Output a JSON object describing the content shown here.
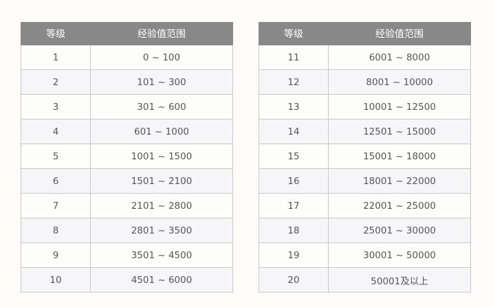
{
  "headers": {
    "level": "等级",
    "range": "经验值范围"
  },
  "left_table": [
    {
      "level": "1",
      "range": "0 ~ 100"
    },
    {
      "level": "2",
      "range": "101 ~ 300"
    },
    {
      "level": "3",
      "range": "301 ~ 600"
    },
    {
      "level": "4",
      "range": "601 ~ 1000"
    },
    {
      "level": "5",
      "range": "1001 ~ 1500"
    },
    {
      "level": "6",
      "range": "1501 ~ 2100"
    },
    {
      "level": "7",
      "range": "2101 ~ 2800"
    },
    {
      "level": "8",
      "range": "2801 ~ 3500"
    },
    {
      "level": "9",
      "range": "3501 ~ 4500"
    },
    {
      "level": "10",
      "range": "4501 ~ 6000"
    }
  ],
  "right_table": [
    {
      "level": "11",
      "range": "6001 ~ 8000"
    },
    {
      "level": "12",
      "range": "8001 ~ 10000"
    },
    {
      "level": "13",
      "range": "10001 ~ 12500"
    },
    {
      "level": "14",
      "range": "12501 ~ 15000"
    },
    {
      "level": "15",
      "range": "15001 ~ 18000"
    },
    {
      "level": "16",
      "range": "18001 ~ 22000"
    },
    {
      "level": "17",
      "range": "22001 ~ 25000"
    },
    {
      "level": "18",
      "range": "25001 ~ 30000"
    },
    {
      "level": "19",
      "range": "30001 ~ 50000"
    },
    {
      "level": "20",
      "range": "50001及以上"
    }
  ]
}
